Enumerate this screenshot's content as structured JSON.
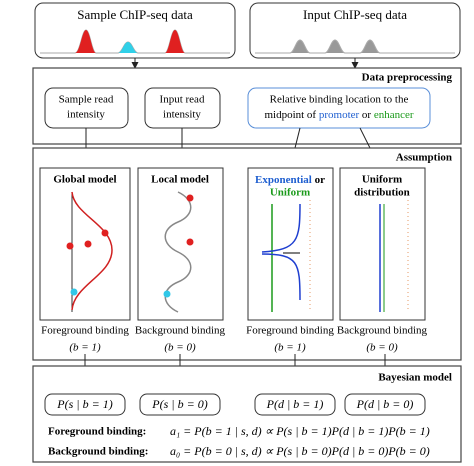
{
  "top": {
    "sample": "Sample ChIP-seq data",
    "input": "Input ChIP-seq data"
  },
  "preprocessing": {
    "title": "Data preprocessing",
    "sample_box": [
      "Sample read",
      "intensity"
    ],
    "input_box": [
      "Input read",
      "intensity"
    ],
    "location_box": {
      "line1": "Relative binding location to the",
      "line2_pre": "midpoint of ",
      "promoter": "promoter",
      "or": " or ",
      "enhancer": "enhancer"
    }
  },
  "assumption": {
    "title": "Assumption",
    "panels": [
      {
        "title": [
          "Global model"
        ],
        "label": "Foreground binding",
        "sub": "(b = 1)"
      },
      {
        "title": [
          "Local model"
        ],
        "label": "Background binding",
        "sub": "(b = 0)"
      },
      {
        "title_a": "Exponential",
        "title_b": " or",
        "title_c": "Uniform",
        "label": "Foreground binding",
        "sub": "(b = 1)"
      },
      {
        "title": [
          "Uniform",
          "distribution"
        ],
        "label": "Background binding",
        "sub": "(b = 0)"
      }
    ]
  },
  "bayesian": {
    "title": "Bayesian model",
    "boxes": [
      "P(s | b = 1)",
      "P(s | b = 0)",
      "P(d | b = 1)",
      "P(d | b = 0)"
    ],
    "fg_label": "Foreground binding:",
    "fg_formula": "a₁ = P(b = 1 | s, d) ∝ P(s | b = 1)P(d | b = 1)P(b = 1)",
    "bg_label": "Background binding:",
    "bg_formula": "a₀ = P(b = 0 | s, d) ∝ P(s | b = 0)P(d | b = 0)P(b = 0)"
  }
}
